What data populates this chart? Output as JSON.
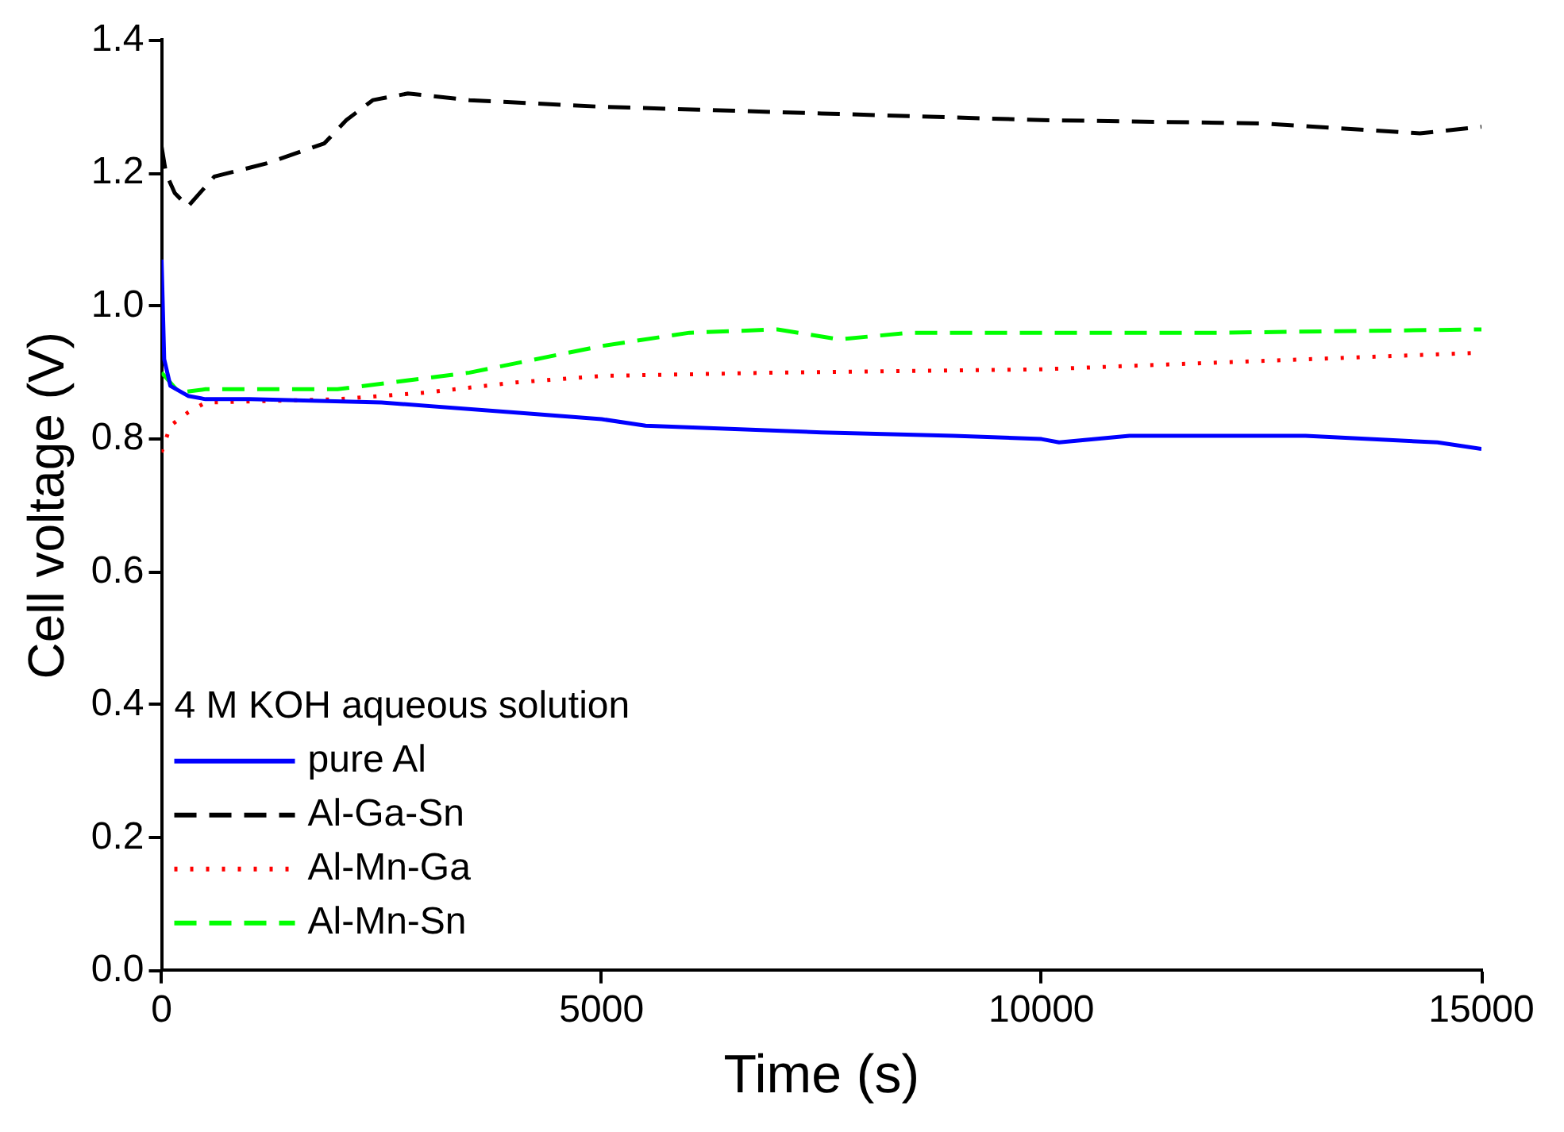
{
  "chart_data": {
    "type": "line",
    "xlabel": "Time (s)",
    "ylabel": "Cell voltage (V)",
    "legend_title": "4 M KOH aqueous solution",
    "legend": "bottom left",
    "grid": false,
    "marker": "none",
    "xlim": [
      0,
      15000
    ],
    "xticks": [
      0,
      5000,
      10000,
      15000
    ],
    "ylim": [
      0,
      1.4
    ],
    "yticks": [
      {
        "value": 0,
        "label": "0.0"
      },
      {
        "value": 0.2,
        "label": "0.2"
      },
      {
        "value": 0.4,
        "label": "0.4"
      },
      {
        "value": 0.6,
        "label": "0.6"
      },
      {
        "value": 0.8,
        "label": "0.8"
      },
      {
        "value": 1,
        "label": "1.0"
      },
      {
        "value": 1.2,
        "label": "1.2"
      },
      {
        "value": 1.4,
        "label": "1.4"
      }
    ],
    "series": [
      {
        "name": "pure Al",
        "color": "#0000ff",
        "line_style": "solid",
        "x": [
          0,
          30,
          100,
          300,
          500,
          1000,
          2500,
          4000,
          5000,
          5500,
          7500,
          9000,
          10000,
          10200,
          11000,
          13000,
          14500,
          15000
        ],
        "values": [
          1.07,
          0.92,
          0.88,
          0.865,
          0.86,
          0.86,
          0.855,
          0.84,
          0.83,
          0.82,
          0.81,
          0.805,
          0.8,
          0.795,
          0.805,
          0.805,
          0.795,
          0.785
        ]
      },
      {
        "name": "Al-Ga-Sn",
        "color": "#000000",
        "line_style": "dashed",
        "x": [
          0,
          50,
          150,
          300,
          600,
          1200,
          1850,
          2100,
          2400,
          2800,
          3500,
          5000,
          7500,
          10000,
          12500,
          14300,
          15000
        ],
        "values": [
          1.24,
          1.2,
          1.17,
          1.15,
          1.195,
          1.215,
          1.245,
          1.28,
          1.31,
          1.32,
          1.31,
          1.3,
          1.29,
          1.28,
          1.275,
          1.26,
          1.27
        ]
      },
      {
        "name": "Al-Mn-Ga",
        "color": "#ff0000",
        "line_style": "dotted",
        "x": [
          0,
          100,
          300,
          500,
          2000,
          3000,
          4000,
          5000,
          7000,
          10000,
          12000,
          15000
        ],
        "values": [
          0.78,
          0.82,
          0.84,
          0.855,
          0.86,
          0.87,
          0.885,
          0.895,
          0.9,
          0.905,
          0.915,
          0.93
        ]
      },
      {
        "name": "Al-Mn-Sn",
        "color": "#00ff00",
        "line_style": "dashed",
        "x": [
          0,
          200,
          500,
          2000,
          3500,
          5000,
          6000,
          7000,
          7700,
          8500,
          12000,
          15000
        ],
        "values": [
          0.9,
          0.87,
          0.875,
          0.875,
          0.9,
          0.94,
          0.96,
          0.965,
          0.95,
          0.96,
          0.96,
          0.965
        ]
      }
    ]
  }
}
